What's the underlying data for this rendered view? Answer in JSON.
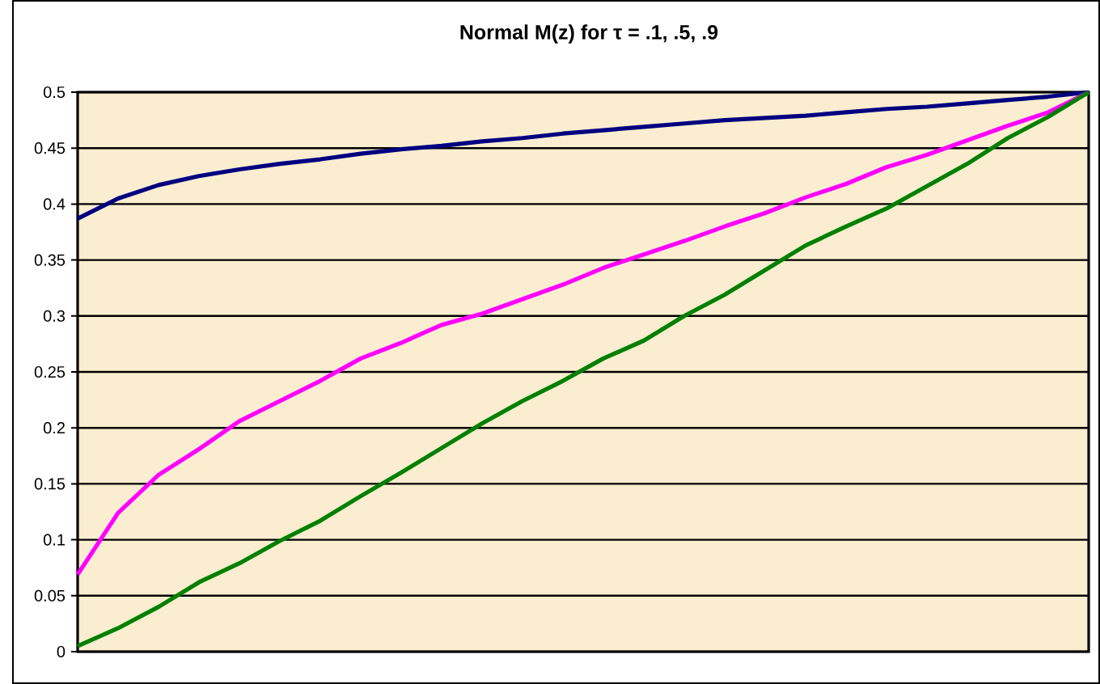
{
  "chart_data": {
    "type": "line",
    "title": "Normal M(z) for τ = .1, .5, .9",
    "categories": [
      null,
      null,
      null,
      null,
      null,
      null,
      null,
      null,
      null,
      null,
      null,
      null,
      null,
      null,
      null,
      null,
      null,
      null,
      null,
      null,
      null,
      null,
      null,
      null,
      null,
      null
    ],
    "series": [
      {
        "color": "#000080",
        "values": [
          0.387,
          0.405,
          0.417,
          0.425,
          0.431,
          0.436,
          0.44,
          0.445,
          0.449,
          0.452,
          0.456,
          0.459,
          0.463,
          0.466,
          0.469,
          0.472,
          0.475,
          0.477,
          0.479,
          0.482,
          0.485,
          0.487,
          0.49,
          0.493,
          0.496,
          0.5
        ]
      },
      {
        "color": "#ff00ff",
        "values": [
          0.069,
          0.124,
          0.158,
          0.181,
          0.206,
          0.224,
          0.242,
          0.262,
          0.276,
          0.292,
          0.302,
          0.315,
          0.328,
          0.343,
          0.355,
          0.367,
          0.38,
          0.392,
          0.406,
          0.418,
          0.433,
          0.444,
          0.457,
          0.47,
          0.482,
          0.5
        ]
      },
      {
        "color": "#008000",
        "values": [
          0.005,
          0.021,
          0.04,
          0.062,
          0.079,
          0.099,
          0.117,
          0.139,
          0.16,
          0.182,
          0.204,
          0.224,
          0.242,
          0.262,
          0.278,
          0.3,
          0.319,
          0.341,
          0.363,
          0.38,
          0.396,
          0.416,
          0.436,
          0.459,
          0.478,
          0.5
        ]
      }
    ],
    "ylim": [
      0,
      0.5
    ],
    "yticks": [
      0,
      0.05,
      0.1,
      0.15,
      0.2,
      0.25,
      0.3,
      0.35,
      0.4,
      0.45,
      0.5
    ],
    "grid": "y"
  }
}
